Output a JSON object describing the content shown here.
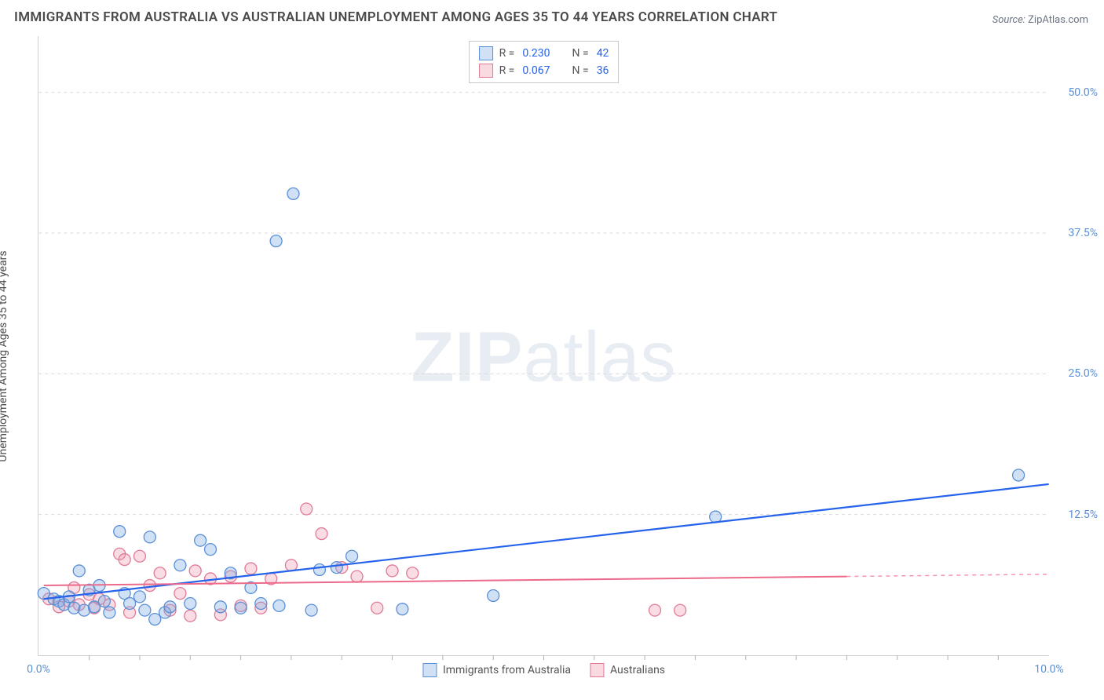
{
  "title": "IMMIGRANTS FROM AUSTRALIA VS AUSTRALIAN UNEMPLOYMENT AMONG AGES 35 TO 44 YEARS CORRELATION CHART",
  "source_label": "Source:",
  "source_value": "ZipAtlas.com",
  "y_axis_label": "Unemployment Among Ages 35 to 44 years",
  "watermark_bold": "ZIP",
  "watermark_light": "atlas",
  "chart": {
    "type": "scatter",
    "xlim": [
      0,
      10
    ],
    "ylim": [
      0,
      55
    ],
    "x_ticks": [
      0,
      10
    ],
    "x_tick_labels": [
      "0.0%",
      "10.0%"
    ],
    "y_ticks": [
      12.5,
      25.0,
      37.5,
      50.0
    ],
    "y_tick_labels": [
      "12.5%",
      "25.0%",
      "37.5%",
      "50.0%"
    ],
    "x_minor_ticks": [
      0.5,
      1,
      1.5,
      2,
      2.5,
      3,
      3.5,
      4,
      4.5,
      5,
      5.5,
      6,
      6.5,
      7,
      7.5,
      8,
      8.5,
      9,
      9.5
    ],
    "grid_color": "#d9d9d9",
    "background_color": "#ffffff",
    "marker_radius": 7.5,
    "series": {
      "blue": {
        "label": "Immigrants from Australia",
        "color_fill": "rgba(120,170,230,0.35)",
        "color_stroke": "#5a8fd6",
        "R": "0.230",
        "N": "42",
        "trend": {
          "x1": 0.05,
          "y1": 5.0,
          "x2": 10.0,
          "y2": 15.2,
          "color": "#2563eb",
          "width": 2.2
        },
        "points": [
          [
            0.05,
            5.5
          ],
          [
            0.15,
            5.0
          ],
          [
            0.2,
            4.8
          ],
          [
            0.25,
            4.5
          ],
          [
            0.3,
            5.2
          ],
          [
            0.35,
            4.2
          ],
          [
            0.4,
            7.5
          ],
          [
            0.45,
            4.0
          ],
          [
            0.5,
            5.8
          ],
          [
            0.55,
            4.3
          ],
          [
            0.6,
            6.2
          ],
          [
            0.65,
            4.8
          ],
          [
            0.7,
            3.8
          ],
          [
            0.8,
            11.0
          ],
          [
            0.85,
            5.5
          ],
          [
            0.9,
            4.6
          ],
          [
            1.0,
            5.2
          ],
          [
            1.05,
            4.0
          ],
          [
            1.1,
            10.5
          ],
          [
            1.15,
            3.2
          ],
          [
            1.25,
            3.8
          ],
          [
            1.3,
            4.3
          ],
          [
            1.4,
            8.0
          ],
          [
            1.5,
            4.6
          ],
          [
            1.6,
            10.2
          ],
          [
            1.7,
            9.4
          ],
          [
            1.8,
            4.3
          ],
          [
            1.9,
            7.3
          ],
          [
            2.0,
            4.2
          ],
          [
            2.1,
            6.0
          ],
          [
            2.2,
            4.6
          ],
          [
            2.35,
            36.8
          ],
          [
            2.38,
            4.4
          ],
          [
            2.52,
            41.0
          ],
          [
            2.7,
            4.0
          ],
          [
            2.78,
            7.6
          ],
          [
            2.95,
            7.8
          ],
          [
            3.1,
            8.8
          ],
          [
            3.6,
            4.1
          ],
          [
            4.5,
            5.3
          ],
          [
            6.7,
            12.3
          ],
          [
            9.7,
            16.0
          ]
        ]
      },
      "pink": {
        "label": "Australians",
        "color_fill": "rgba(240,150,170,0.32)",
        "color_stroke": "#e07a95",
        "R": "0.067",
        "N": "36",
        "trend": {
          "x1": 0.05,
          "y1": 6.2,
          "x2": 8.0,
          "y2": 7.0,
          "color": "#ec6a8a",
          "width": 2
        },
        "trend_dash": {
          "x1": 8.0,
          "y1": 7.0,
          "x2": 10.0,
          "y2": 7.2
        },
        "points": [
          [
            0.1,
            5.0
          ],
          [
            0.2,
            4.3
          ],
          [
            0.3,
            4.8
          ],
          [
            0.35,
            6.0
          ],
          [
            0.4,
            4.5
          ],
          [
            0.5,
            5.4
          ],
          [
            0.55,
            4.2
          ],
          [
            0.6,
            5.0
          ],
          [
            0.7,
            4.5
          ],
          [
            0.8,
            9.0
          ],
          [
            0.85,
            8.5
          ],
          [
            0.9,
            3.8
          ],
          [
            1.0,
            8.8
          ],
          [
            1.1,
            6.2
          ],
          [
            1.2,
            7.3
          ],
          [
            1.3,
            4.0
          ],
          [
            1.4,
            5.5
          ],
          [
            1.5,
            3.5
          ],
          [
            1.55,
            7.5
          ],
          [
            1.7,
            6.8
          ],
          [
            1.8,
            3.6
          ],
          [
            1.9,
            7.0
          ],
          [
            2.0,
            4.4
          ],
          [
            2.1,
            7.7
          ],
          [
            2.2,
            4.2
          ],
          [
            2.3,
            6.8
          ],
          [
            2.5,
            8.0
          ],
          [
            2.65,
            13.0
          ],
          [
            2.8,
            10.8
          ],
          [
            3.0,
            7.8
          ],
          [
            3.15,
            7.0
          ],
          [
            3.35,
            4.2
          ],
          [
            3.5,
            7.5
          ],
          [
            3.7,
            7.3
          ],
          [
            6.1,
            4.0
          ],
          [
            6.35,
            4.0
          ]
        ]
      }
    }
  },
  "legend_top": {
    "r_label": "R =",
    "n_label": "N ="
  }
}
